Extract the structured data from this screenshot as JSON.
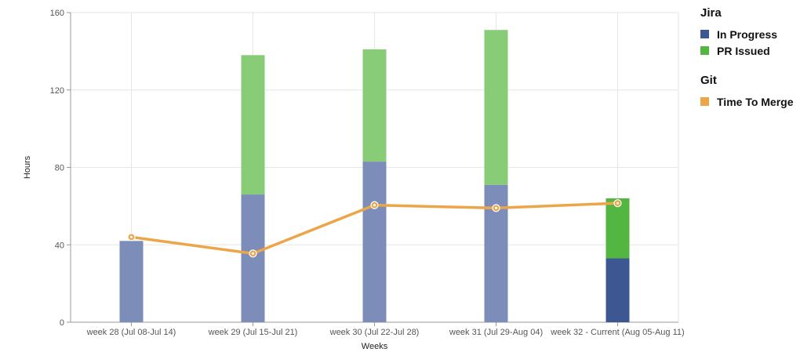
{
  "chart_data": {
    "type": "bar",
    "xlabel": "Weeks",
    "ylabel": "Hours",
    "ylim": [
      0,
      160
    ],
    "yticks": [
      0,
      40,
      80,
      120,
      160
    ],
    "grid": true,
    "stacked": true,
    "categories": [
      "week 28 (Jul 08-Jul 14)",
      "week 29 (Jul 15-Jul 21)",
      "week 30 (Jul 22-Jul 28)",
      "week 31 (Jul 29-Aug 04)",
      "week 32 - Current (Aug 05-Aug 11)"
    ],
    "series": [
      {
        "name": "In Progress",
        "kind": "bar",
        "values": [
          42,
          66,
          83,
          71,
          33
        ],
        "color": "#7b8db8",
        "highlight_color": "#3d5793"
      },
      {
        "name": "PR Issued",
        "kind": "bar",
        "values": [
          0,
          72,
          58,
          80,
          31
        ],
        "color": "#88cc77",
        "highlight_color": "#52b640"
      },
      {
        "name": "Time To Merge",
        "kind": "line",
        "values": [
          44,
          35.5,
          60.5,
          59,
          61.5
        ],
        "color": "#eca64a"
      }
    ],
    "highlight_category_index": 4,
    "legend_placement": "right",
    "legend": [
      {
        "title": "Jira",
        "items": [
          {
            "label": "In Progress",
            "color": "#3d5793"
          },
          {
            "label": "PR Issued",
            "color": "#52b640"
          }
        ]
      },
      {
        "title": "Git",
        "items": [
          {
            "label": "Time To Merge",
            "color": "#eca64a"
          }
        ]
      }
    ]
  }
}
